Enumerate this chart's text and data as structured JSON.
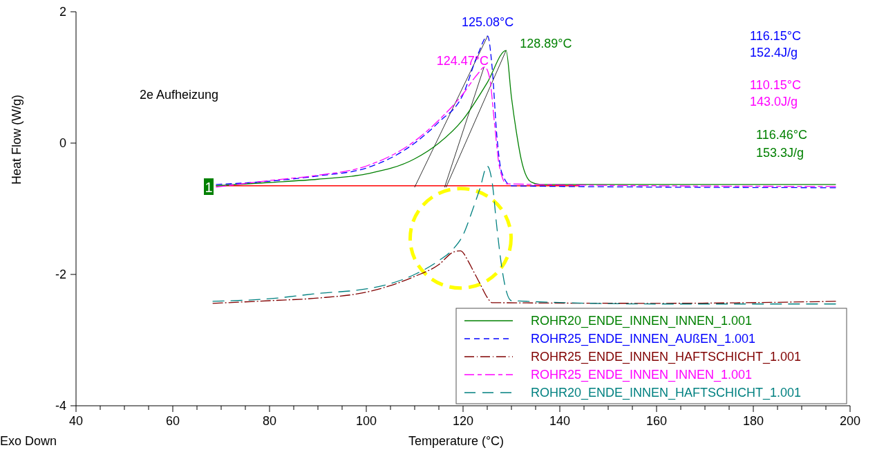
{
  "chart_data": {
    "type": "line",
    "xlabel": "Temperature (°C)",
    "ylabel": "Heat Flow (W/g)",
    "xlim": [
      40,
      200
    ],
    "ylim": [
      -4,
      2
    ],
    "xticks": [
      40,
      {
        "value": 45,
        "label": null
      },
      {
        "value": 50,
        "label": null
      },
      {
        "value": 55,
        "label": null
      },
      60,
      {
        "value": 65,
        "label": null
      },
      {
        "value": 70,
        "label": null
      },
      {
        "value": 75,
        "label": null
      },
      80,
      {
        "value": 85,
        "label": null
      },
      {
        "value": 90,
        "label": null
      },
      {
        "value": 95,
        "label": null
      },
      100,
      {
        "value": 105,
        "label": null
      },
      {
        "value": 110,
        "label": null
      },
      {
        "value": 115,
        "label": null
      },
      120,
      {
        "value": 125,
        "label": null
      },
      {
        "value": 130,
        "label": null
      },
      {
        "value": 135,
        "label": null
      },
      140,
      {
        "value": 145,
        "label": null
      },
      {
        "value": 150,
        "label": null
      },
      {
        "value": 155,
        "label": null
      },
      160,
      {
        "value": 165,
        "label": null
      },
      {
        "value": 170,
        "label": null
      },
      {
        "value": 175,
        "label": null
      },
      180,
      {
        "value": 185,
        "label": null
      },
      {
        "value": 190,
        "label": null
      },
      {
        "value": 195,
        "label": null
      },
      200
    ],
    "yticks": [
      -4,
      -2,
      0,
      2
    ],
    "grid": false,
    "legend": "bottom right",
    "series": [
      {
        "name": "ROHR20_ENDE_INNEN_INNEN_1.001",
        "color": "#008000",
        "line_style": "solid",
        "x": [
          69,
          80,
          90,
          100,
          110,
          115,
          120,
          125,
          128.89,
          130,
          131,
          132,
          134,
          136,
          160,
          197
        ],
        "values": [
          -0.65,
          -0.6,
          -0.55,
          -0.47,
          -0.24,
          0.0,
          0.36,
          0.92,
          1.41,
          0.7,
          0.18,
          -0.24,
          -0.59,
          -0.63,
          -0.63,
          -0.63
        ]
      },
      {
        "name": "ROHR25_ENDE_INNEN_AUßEN_1.001",
        "color": "#0000ff",
        "line_style": "dashed",
        "x": [
          69,
          80,
          90,
          100,
          110,
          115,
          120,
          123,
          125.08,
          126,
          127,
          128,
          130,
          160,
          197
        ],
        "values": [
          -0.63,
          -0.58,
          -0.5,
          -0.38,
          0.0,
          0.32,
          0.74,
          1.34,
          1.63,
          1.16,
          0.1,
          -0.45,
          -0.65,
          -0.67,
          -0.68
        ]
      },
      {
        "name": "ROHR25_ENDE_INNEN_HAFTSCHICHT_1.001",
        "color": "#800000",
        "line_style": "dashed",
        "x": [
          68.3,
          80,
          90,
          100,
          105,
          110,
          115,
          118,
          119.5,
          121,
          122,
          123.5,
          125,
          126,
          160,
          197
        ],
        "values": [
          -2.44,
          -2.4,
          -2.36,
          -2.27,
          -2.17,
          -2.03,
          -1.85,
          -1.66,
          -1.64,
          -1.79,
          -1.93,
          -2.14,
          -2.35,
          -2.43,
          -2.44,
          -2.41
        ]
      },
      {
        "name": "ROHR25_ENDE_INNEN_INNEN_1.001",
        "color": "#ff00ff",
        "line_style": "dashed",
        "x": [
          69,
          80,
          90,
          100,
          110,
          115,
          120,
          123,
          124.47,
          125.5,
          126.5,
          127.5,
          129,
          160,
          197
        ],
        "values": [
          -0.67,
          -0.57,
          -0.49,
          -0.35,
          0.03,
          0.35,
          0.75,
          1.05,
          1.16,
          0.99,
          0.3,
          -0.35,
          -0.62,
          -0.65,
          -0.66
        ]
      },
      {
        "name": "ROHR20_ENDE_INNEN_HAFTSCHICHT_1.001",
        "color": "#008080",
        "line_style": "dashed",
        "x": [
          68.3,
          80,
          90,
          100,
          105,
          110,
          115,
          118,
          120,
          122,
          123.5,
          125,
          126,
          127,
          128,
          129,
          130,
          160,
          197
        ],
        "values": [
          -2.41,
          -2.37,
          -2.29,
          -2.22,
          -2.14,
          -2.0,
          -1.79,
          -1.61,
          -1.4,
          -1.01,
          -0.69,
          -0.35,
          -0.59,
          -1.29,
          -1.89,
          -2.27,
          -2.4,
          -2.45,
          -2.45
        ]
      },
      {
        "color": "#ff0000",
        "type": "line",
        "line_style": "solid",
        "x": [
          69,
          144
        ],
        "values": [
          -0.65,
          -0.65
        ]
      },
      {
        "color": "#000000",
        "type": "line",
        "line_style": "solid",
        "x": [
          110,
          125.08
        ],
        "values": [
          -0.67,
          1.63
        ]
      },
      {
        "color": "#000000",
        "type": "line",
        "line_style": "solid",
        "x": [
          116.2,
          124.3
        ],
        "values": [
          -0.67,
          1.15
        ]
      },
      {
        "color": "#000000",
        "type": "line",
        "line_style": "solid",
        "x": [
          116.5,
          128.89
        ],
        "values": [
          -0.67,
          1.41
        ]
      }
    ],
    "annotations": [
      "2e Aufheizung",
      {
        "text": "125.08°C",
        "x": 125.08,
        "y": 1.63
      },
      {
        "text": "124.47°C",
        "x": 124.47,
        "y": 1.16
      },
      {
        "text": "128.89°C",
        "x": 128.89,
        "y": 1.41
      },
      "116.15°C",
      "152.4J/g",
      "110.15°C",
      "143.0J/g",
      "116.46°C",
      "153.3J/g",
      "Exo Down",
      "1"
    ]
  }
}
